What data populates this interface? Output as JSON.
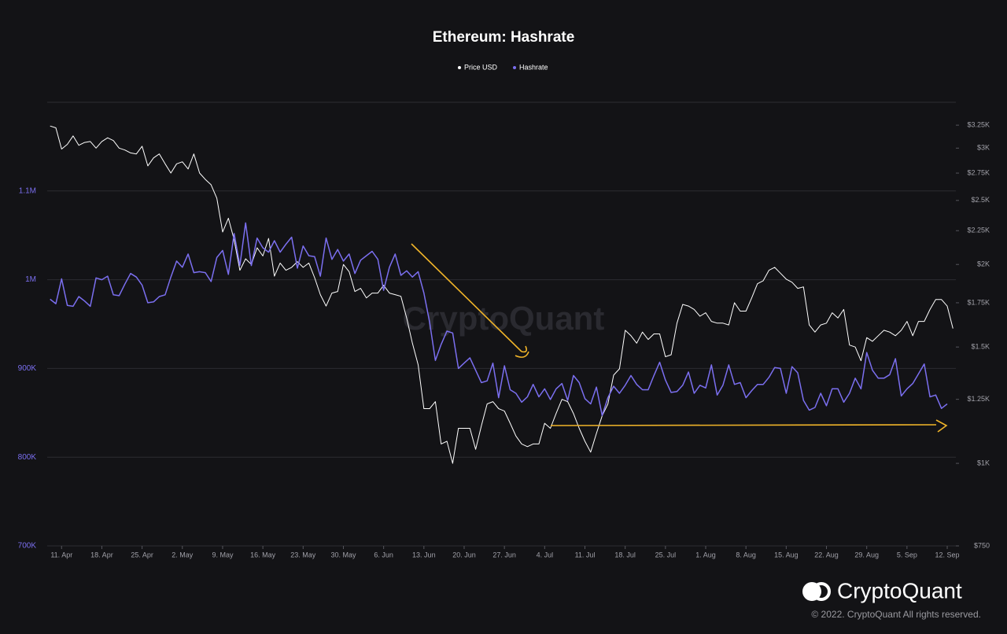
{
  "chart_data": {
    "type": "line",
    "title": "Ethereum: Hashrate",
    "watermark": "CryptoQuant",
    "brand": "CryptoQuant",
    "copyright": "© 2022. CryptoQuant All rights reserved.",
    "categories": [
      null,
      null,
      "11. Apr",
      null,
      null,
      null,
      null,
      null,
      null,
      "18. Apr",
      null,
      null,
      null,
      null,
      null,
      null,
      "25. Apr",
      null,
      null,
      null,
      null,
      null,
      null,
      "2. May",
      null,
      null,
      null,
      null,
      null,
      null,
      "9. May",
      null,
      null,
      null,
      null,
      null,
      null,
      "16. May",
      null,
      null,
      null,
      null,
      null,
      null,
      "23. May",
      null,
      null,
      null,
      null,
      null,
      null,
      "30. May",
      null,
      null,
      null,
      null,
      null,
      null,
      "6. Jun",
      null,
      null,
      null,
      null,
      null,
      null,
      "13. Jun",
      null,
      null,
      null,
      null,
      null,
      null,
      "20. Jun",
      null,
      null,
      null,
      null,
      null,
      null,
      "27. Jun",
      null,
      null,
      null,
      null,
      null,
      null,
      "4. Jul",
      null,
      null,
      null,
      null,
      null,
      null,
      "11. Jul",
      null,
      null,
      null,
      null,
      null,
      null,
      "18. Jul",
      null,
      null,
      null,
      null,
      null,
      null,
      "25. Jul",
      null,
      null,
      null,
      null,
      null,
      null,
      "1. Aug",
      null,
      null,
      null,
      null,
      null,
      null,
      "8. Aug",
      null,
      null,
      null,
      null,
      null,
      null,
      "15. Aug",
      null,
      null,
      null,
      null,
      null,
      null,
      "22. Aug",
      null,
      null,
      null,
      null,
      null,
      null,
      "29. Aug",
      null,
      null,
      null,
      null,
      null,
      null,
      "5. Sep",
      null,
      null,
      null,
      null,
      null,
      null,
      "12. Sep",
      null
    ],
    "series": [
      {
        "name": "Price USD",
        "color": "#ffffff",
        "axis": "y2",
        "values": [
          3240,
          3220,
          2990,
          3040,
          3130,
          3030,
          3060,
          3070,
          3000,
          3070,
          3110,
          3080,
          3000,
          2980,
          2950,
          2940,
          3020,
          2820,
          2900,
          2940,
          2840,
          2750,
          2840,
          2860,
          2790,
          2940,
          2750,
          2690,
          2640,
          2520,
          2240,
          2350,
          2180,
          1960,
          2040,
          2000,
          2120,
          2060,
          2190,
          1920,
          2010,
          1960,
          1980,
          2020,
          1980,
          2010,
          1910,
          1800,
          1730,
          1810,
          1820,
          2000,
          1950,
          1820,
          1840,
          1780,
          1810,
          1810,
          1860,
          1810,
          1800,
          1790,
          1660,
          1520,
          1410,
          1210,
          1210,
          1240,
          1070,
          1080,
          1000,
          1130,
          1130,
          1130,
          1050,
          1140,
          1230,
          1240,
          1210,
          1200,
          1150,
          1100,
          1070,
          1060,
          1070,
          1070,
          1150,
          1130,
          1190,
          1250,
          1240,
          1190,
          1130,
          1080,
          1040,
          1110,
          1180,
          1230,
          1360,
          1390,
          1590,
          1560,
          1520,
          1580,
          1540,
          1570,
          1570,
          1450,
          1460,
          1630,
          1740,
          1730,
          1710,
          1670,
          1690,
          1640,
          1630,
          1630,
          1620,
          1750,
          1700,
          1700,
          1780,
          1870,
          1890,
          1960,
          1980,
          1940,
          1900,
          1880,
          1840,
          1850,
          1620,
          1580,
          1620,
          1630,
          1690,
          1660,
          1710,
          1510,
          1500,
          1430,
          1550,
          1530,
          1560,
          1590,
          1580,
          1560,
          1590,
          1640,
          1560,
          1640,
          1640,
          1710,
          1770,
          1770,
          1730,
          1600
        ]
      },
      {
        "name": "Hashrate",
        "color": "#7b6ff0",
        "axis": "y",
        "values": [
          978000,
          973000,
          1001000,
          971000,
          970000,
          981000,
          976000,
          970000,
          1002000,
          1000000,
          1004000,
          983000,
          982000,
          995000,
          1007000,
          1003000,
          994000,
          974000,
          975000,
          981000,
          983000,
          1003000,
          1021000,
          1014000,
          1029000,
          1008000,
          1009000,
          1008000,
          998000,
          1025000,
          1033000,
          1006000,
          1052000,
          1016000,
          1064000,
          1016000,
          1047000,
          1036000,
          1031000,
          1044000,
          1031000,
          1040000,
          1048000,
          1013000,
          1038000,
          1027000,
          1026000,
          1004000,
          1047000,
          1023000,
          1034000,
          1021000,
          1029000,
          1007000,
          1022000,
          1027000,
          1032000,
          1023000,
          988000,
          1014000,
          1029000,
          1005000,
          1010000,
          1003000,
          1009000,
          985000,
          952000,
          909000,
          927000,
          942000,
          940000,
          900000,
          906000,
          912000,
          898000,
          884000,
          886000,
          906000,
          867000,
          903000,
          876000,
          872000,
          862000,
          868000,
          882000,
          868000,
          877000,
          865000,
          877000,
          883000,
          864000,
          892000,
          884000,
          866000,
          860000,
          879000,
          847000,
          867000,
          880000,
          872000,
          881000,
          892000,
          882000,
          876000,
          876000,
          892000,
          907000,
          887000,
          873000,
          874000,
          881000,
          896000,
          872000,
          881000,
          878000,
          904000,
          870000,
          881000,
          904000,
          882000,
          884000,
          867000,
          875000,
          882000,
          882000,
          890000,
          901000,
          900000,
          872000,
          902000,
          895000,
          864000,
          853000,
          856000,
          872000,
          858000,
          877000,
          877000,
          862000,
          872000,
          889000,
          877000,
          918000,
          898000,
          889000,
          889000,
          893000,
          911000,
          869000,
          877000,
          883000,
          894000,
          905000,
          868000,
          870000,
          855000,
          860000,
          null
        ]
      }
    ],
    "ylim": [
      700000,
      1200000
    ],
    "yticks": [
      {
        "value": 700000,
        "label": "700K"
      },
      {
        "value": 800000,
        "label": "800K"
      },
      {
        "value": 900000,
        "label": "900K"
      },
      {
        "value": 1000000,
        "label": "1M"
      },
      {
        "value": 1100000,
        "label": "1.1M"
      }
    ],
    "y2lim": [
      750,
      3520
    ],
    "y2_log": true,
    "y2ticks": [
      {
        "value": 750,
        "label": "$750"
      },
      {
        "value": 1000,
        "label": "$1K"
      },
      {
        "value": 1250,
        "label": "$1.25K"
      },
      {
        "value": 1500,
        "label": "$1.5K"
      },
      {
        "value": 1750,
        "label": "$1.75K"
      },
      {
        "value": 2000,
        "label": "$2K"
      },
      {
        "value": 2250,
        "label": "$2.25K"
      },
      {
        "value": 2500,
        "label": "$2.5K"
      },
      {
        "value": 2750,
        "label": "$2.75K"
      },
      {
        "value": 3000,
        "label": "$3K"
      },
      {
        "value": 3250,
        "label": "$3.25K"
      }
    ],
    "grid": true,
    "legend": "top"
  }
}
